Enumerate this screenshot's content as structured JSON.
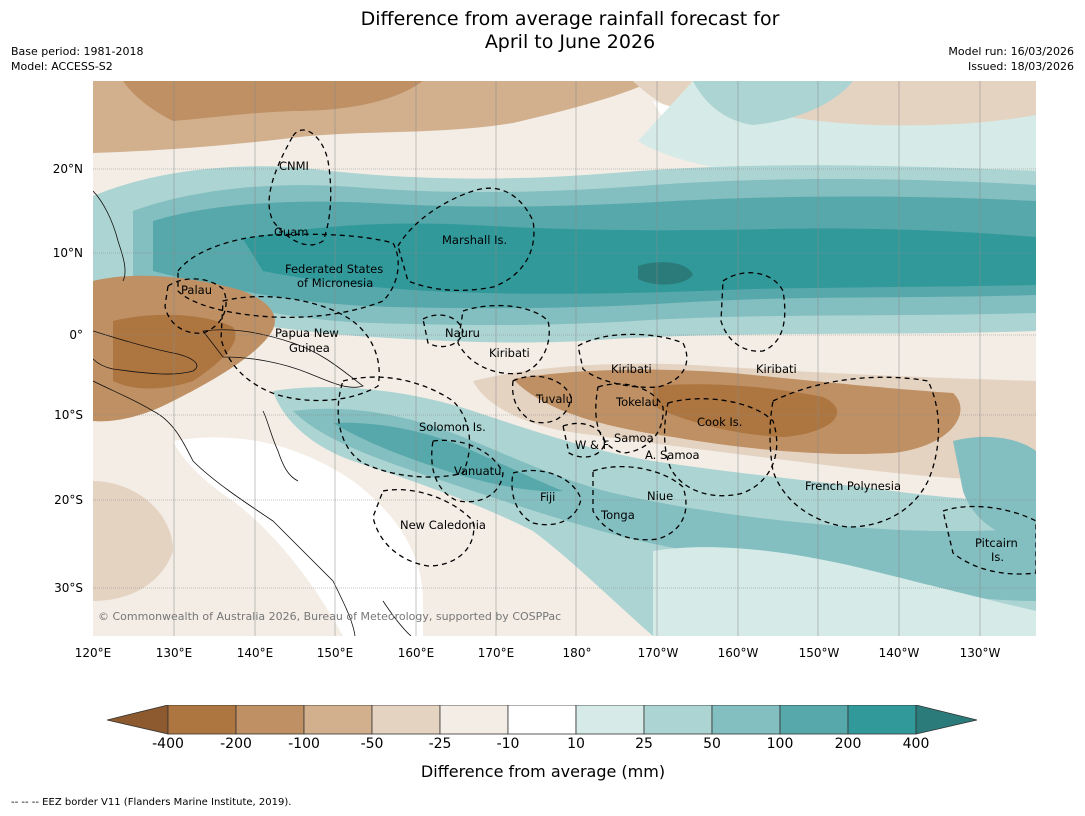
{
  "header": {
    "title_line1": "Difference from average rainfall forecast for",
    "title_line2": "April to June 2026",
    "base_period": "Base period: 1981-2018",
    "model": "Model: ACCESS-S2",
    "model_run": "Model run: 16/03/2026",
    "issued": "Issued: 18/03/2026"
  },
  "map": {
    "lon_ticks": [
      "120°E",
      "130°E",
      "140°E",
      "150°E",
      "160°E",
      "170°E",
      "180°",
      "170°W",
      "160°W",
      "150°W",
      "140°W",
      "130°W"
    ],
    "lat_ticks": [
      "20°N",
      "10°N",
      "0°",
      "10°S",
      "20°S",
      "30°S"
    ],
    "region_labels": [
      {
        "key": "cnmi",
        "text": "CNMI"
      },
      {
        "key": "guam",
        "text": "Guam"
      },
      {
        "key": "marshall",
        "text": "Marshall Is."
      },
      {
        "key": "fsm1",
        "text": "Federated States"
      },
      {
        "key": "fsm2",
        "text": "of Micronesia"
      },
      {
        "key": "palau",
        "text": "Palau"
      },
      {
        "key": "nauru",
        "text": "Nauru"
      },
      {
        "key": "png1",
        "text": "Papua New"
      },
      {
        "key": "png2",
        "text": "Guinea"
      },
      {
        "key": "kiribati_w",
        "text": "Kiribati"
      },
      {
        "key": "kiribati_c",
        "text": "Kiribati"
      },
      {
        "key": "kiribati_e",
        "text": "Kiribati"
      },
      {
        "key": "tuvalu",
        "text": "Tuvalu"
      },
      {
        "key": "tokelau",
        "text": "Tokelau"
      },
      {
        "key": "cook",
        "text": "Cook Is."
      },
      {
        "key": "solomon",
        "text": "Solomon Is."
      },
      {
        "key": "wf",
        "text": "W & F"
      },
      {
        "key": "samoa",
        "text": "Samoa"
      },
      {
        "key": "asamoa",
        "text": "A. Samoa"
      },
      {
        "key": "vanuatu",
        "text": "Vanuatu"
      },
      {
        "key": "fiji",
        "text": "Fiji"
      },
      {
        "key": "niue",
        "text": "Niue"
      },
      {
        "key": "frpoly",
        "text": "French Polynesia"
      },
      {
        "key": "tonga",
        "text": "Tonga"
      },
      {
        "key": "newcal",
        "text": "New Caledonia"
      },
      {
        "key": "pitcairn1",
        "text": "Pitcairn"
      },
      {
        "key": "pitcairn2",
        "text": "Is."
      }
    ],
    "credit": "© Commonwealth of Australia 2026, Bureau of Meteorology, supported by COSPPac"
  },
  "legend": {
    "tick_labels": [
      "-400",
      "-200",
      "-100",
      "-50",
      "-25",
      "-10",
      "10",
      "25",
      "50",
      "100",
      "200",
      "400"
    ],
    "colors": [
      "#8c5a2e",
      "#ad7540",
      "#be9064",
      "#d2b08e",
      "#e5d3c2",
      "#f3ede6",
      "#ffffff",
      "#d6eae7",
      "#acd4d2",
      "#83bec0",
      "#57a8aa",
      "#32999b",
      "#2a7b7a"
    ],
    "title": "Difference from average (mm)"
  },
  "footnote": "--  --  -- EEZ border V11 (Flanders Marine Institute, 2019)."
}
